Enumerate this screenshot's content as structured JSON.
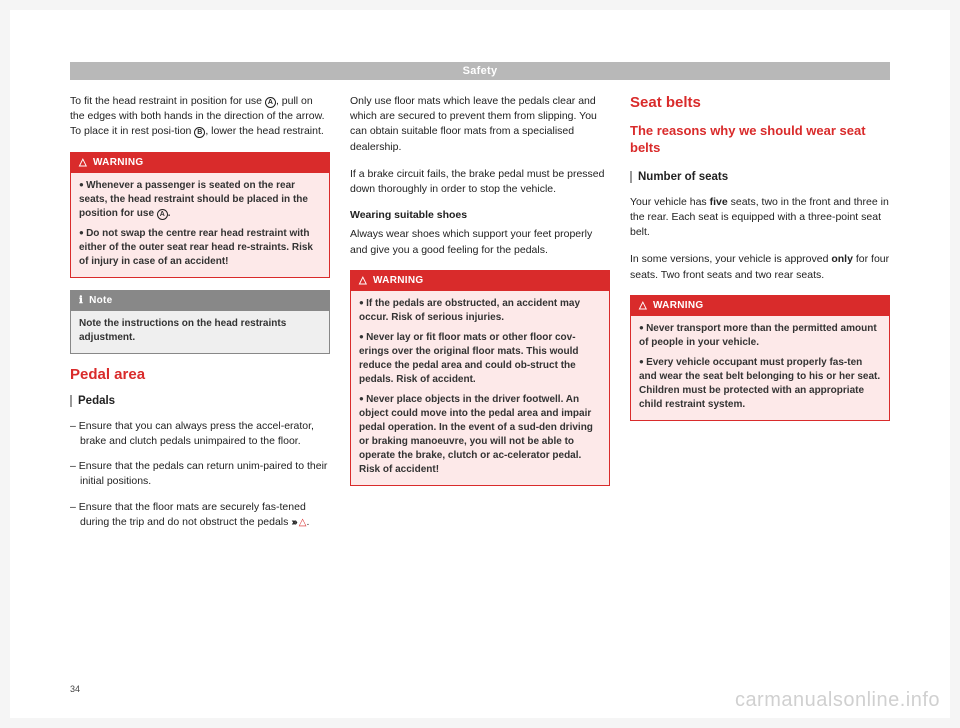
{
  "header": {
    "title": "Safety"
  },
  "col1": {
    "intro_html": "To fit the head restraint in position for use <span class='circ'>A</span>, pull on the edges with both hands in the direction of the arrow. To place it in rest posi-tion <span class='circ'>B</span>, lower the head restraint.",
    "warning": {
      "label": "WARNING",
      "items": [
        "Whenever a passenger is seated on the rear seats, the head restraint should be placed in the position for use <span class='circ'>A</span>.",
        "Do not swap the centre rear head restraint with either of the outer seat rear head re-straints. Risk of injury in case of an accident!"
      ]
    },
    "note": {
      "label": "Note",
      "text": "Note the instructions on the head restraints adjustment."
    },
    "pedal_title": "Pedal area",
    "pedal_sub": "Pedals",
    "pedal_items": [
      "– Ensure that you can always press the accel-erator, brake and clutch pedals unimpaired to the floor.",
      "– Ensure that the pedals can return unim-paired to their initial positions.",
      "– Ensure that the floor mats are securely fas-tened during the trip and do not obstruct the pedals <span class='chev'>›››</span> <span class='tri'>△</span>."
    ]
  },
  "col2": {
    "p1": "Only use floor mats which leave the pedals clear and which are secured to prevent them from slipping. You can obtain suitable floor mats from a specialised dealership.",
    "p2": "If a brake circuit fails, the brake pedal must be pressed down thoroughly in order to stop the vehicle.",
    "shoes_head": "Wearing suitable shoes",
    "shoes_body": "Always wear shoes which support your feet properly and give you a good feeling for the pedals.",
    "warning": {
      "label": "WARNING",
      "items": [
        "If the pedals are obstructed, an accident may occur. Risk of serious injuries.",
        "Never lay or fit floor mats or other floor cov-erings over the original floor mats. This would reduce the pedal area and could ob-struct the pedals. Risk of accident.",
        "Never place objects in the driver footwell. An object could move into the pedal area and impair pedal operation. In the event of a sud-den driving or braking manoeuvre, you will not be able to operate the brake, clutch or ac-celerator pedal. Risk of accident!"
      ]
    }
  },
  "col3": {
    "title": "Seat belts",
    "sub": "The reasons why we should wear seat belts",
    "seats_head": "Number of seats",
    "p1_html": "Your vehicle has <b>five</b> seats, two in the front and three in the rear. Each seat is equipped with a three-point seat belt.",
    "p2_html": "In some versions, your vehicle is approved <b>only</b> for four seats. Two front seats and two rear seats.",
    "warning": {
      "label": "WARNING",
      "items": [
        "Never transport more than the permitted amount of people in your vehicle.",
        "Every vehicle occupant must properly fas-ten and wear the seat belt belonging to his or her seat. Children must be protected with an appropriate child restraint system."
      ]
    }
  },
  "page_number": "34",
  "watermark": "carmanualsonline.info"
}
